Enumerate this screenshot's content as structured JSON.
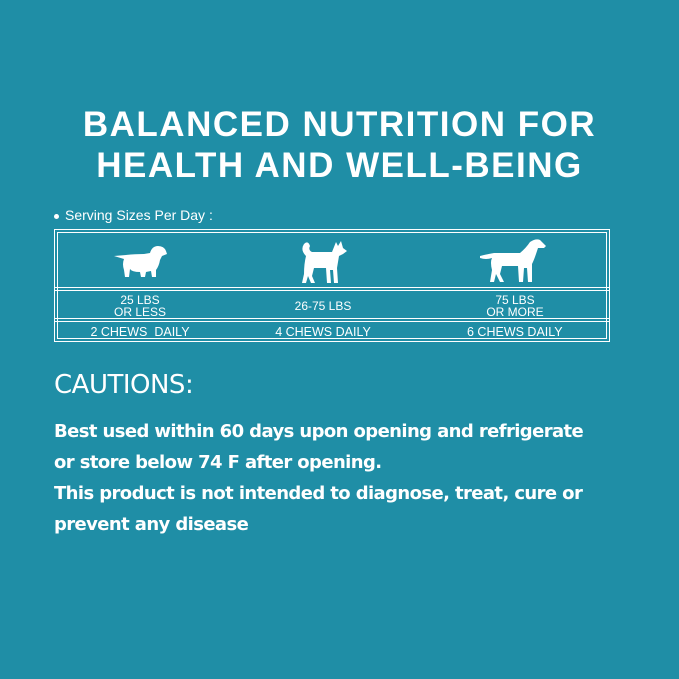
{
  "title": {
    "line1": "BALANCED NUTRITION FOR",
    "line2": "HEALTH AND WELL-BEING"
  },
  "serving": {
    "label": "Serving Sizes Per Day :"
  },
  "table": {
    "icons": [
      "small-dog-icon",
      "medium-dog-icon",
      "large-dog-icon"
    ],
    "weights": [
      [
        "25 LBS",
        "OR LESS"
      ],
      [
        "26-75 LBS"
      ],
      [
        "75 LBS",
        "OR MORE"
      ]
    ],
    "chews": [
      "2 CHEWS  DAILY",
      "4 CHEWS DAILY",
      "6 CHEWS DAILY"
    ]
  },
  "cautions": {
    "heading": "CAUTIONS:",
    "lines": [
      "Best used within 60 days upon opening and refrigerate",
      "or store below 74 F after opening.",
      "This product is not intended to diagnose, treat, cure or",
      "prevent any disease"
    ]
  },
  "colors": {
    "background": "#1f8ea6",
    "foreground": "#ffffff"
  }
}
